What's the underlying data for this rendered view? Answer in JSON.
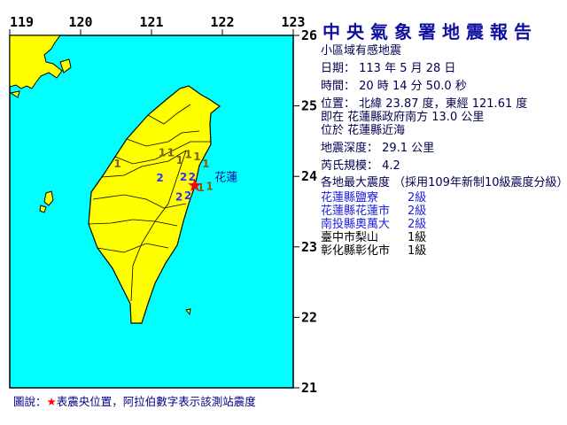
{
  "map": {
    "lon_ticks": [
      "119",
      "120",
      "121",
      "122",
      "123"
    ],
    "lat_ticks": [
      "26",
      "25",
      "24",
      "23",
      "22",
      "21"
    ],
    "land_color": "#ffff00",
    "sea_color": "#00ffff",
    "epicenter": {
      "lat": 23.87,
      "lon": 121.61,
      "label": "花蓮",
      "icon": "red-star-icon"
    },
    "stations": [
      {
        "v": "1",
        "lon": 120.52,
        "lat": 24.19
      },
      {
        "v": "1",
        "lon": 121.15,
        "lat": 24.35
      },
      {
        "v": "1",
        "lon": 121.22,
        "lat": 24.35
      },
      {
        "v": "1",
        "lon": 121.23,
        "lat": 24.24
      },
      {
        "v": "1",
        "lon": 121.45,
        "lat": 24.32
      },
      {
        "v": "1",
        "lon": 121.58,
        "lat": 24.29
      },
      {
        "v": "1",
        "lon": 121.58,
        "lat": 24.19
      },
      {
        "v": "2",
        "lon": 121.12,
        "lat": 23.99
      },
      {
        "v": "2",
        "lon": 121.45,
        "lat": 24.0
      },
      {
        "v": "2",
        "lon": 121.56,
        "lat": 24.0
      },
      {
        "v": "1",
        "lon": 121.4,
        "lat": 23.85
      },
      {
        "v": "1",
        "lon": 121.51,
        "lat": 23.87
      },
      {
        "v": "2",
        "lon": 121.39,
        "lat": 23.72
      },
      {
        "v": "2",
        "lon": 121.5,
        "lat": 23.74
      }
    ]
  },
  "report": {
    "title": "中央氣象署地震報告",
    "subtitle": "小區域有感地震",
    "date": "日期： 113 年 5 月 28 日",
    "time": "時間： 20 時 14 分 50.0 秒",
    "position": "位置： 北緯 23.87 度，東經 121.61 度",
    "relative": "即在 花蓮縣政府南方 13.0 公里",
    "located": "位於 花蓮縣近海",
    "depth": "地震深度： 29.1 公里",
    "magnitude": "芮氏規模： 4.2",
    "intensity_header": "各地最大震度 （採用109年新制10級震度分級）",
    "intensities": [
      {
        "place": "花蓮縣鹽寮",
        "level": "2級",
        "color": "#2020e0"
      },
      {
        "place": "花蓮縣花蓮市",
        "level": "2級",
        "color": "#2020e0"
      },
      {
        "place": "南投縣奧萬大",
        "level": "2級",
        "color": "#2020e0"
      },
      {
        "place": "臺中市梨山",
        "level": "1級",
        "color": "#000000"
      },
      {
        "place": "彰化縣彰化市",
        "level": "1級",
        "color": "#000000"
      }
    ]
  },
  "legend": {
    "prefix": "圖說：",
    "star": "★",
    "text": "表震央位置，阿拉伯數字表示該測站震度"
  }
}
